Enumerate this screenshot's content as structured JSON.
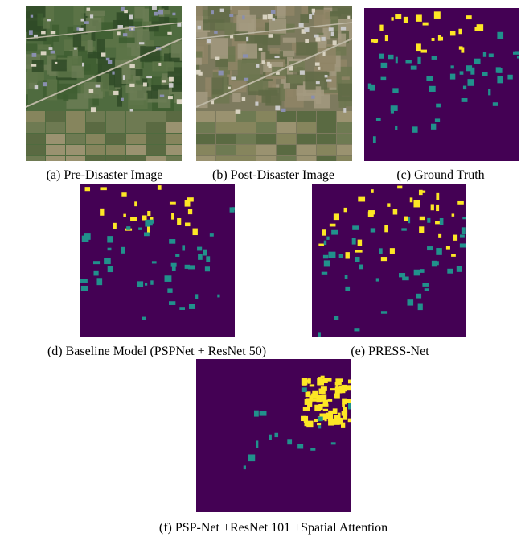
{
  "figure": {
    "panels": [
      {
        "caption": "(a) Pre-Disaster Image"
      },
      {
        "caption": "(b) Post-Disaster Image"
      },
      {
        "caption": "(c) Ground Truth"
      },
      {
        "caption": "(d) Baseline Model (PSPNet + ResNet 50)"
      },
      {
        "caption": "(e) PRESS-Net"
      },
      {
        "caption": "(f) PSP-Net +ResNet 101 +Spatial Attention"
      }
    ]
  }
}
